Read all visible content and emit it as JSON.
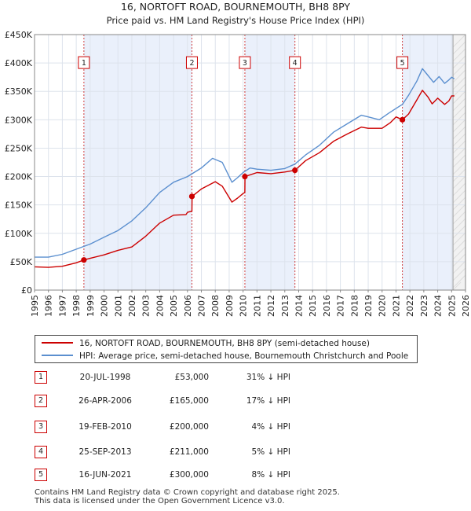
{
  "chart_data": {
    "type": "line",
    "title": "16, NORTOFT ROAD, BOURNEMOUTH, BH8 8PY",
    "subtitle": "Price paid vs. HM Land Registry's House Price Index (HPI)",
    "xlim": [
      1995,
      2026
    ],
    "ylim": [
      0,
      450000
    ],
    "y_ticks": [
      {
        "value": 0,
        "label": "£0"
      },
      {
        "value": 50000,
        "label": "£50K"
      },
      {
        "value": 100000,
        "label": "£100K"
      },
      {
        "value": 150000,
        "label": "£150K"
      },
      {
        "value": 200000,
        "label": "£200K"
      },
      {
        "value": 250000,
        "label": "£250K"
      },
      {
        "value": 300000,
        "label": "£300K"
      },
      {
        "value": 350000,
        "label": "£350K"
      },
      {
        "value": 400000,
        "label": "£400K"
      },
      {
        "value": 450000,
        "label": "£450K"
      }
    ],
    "x_ticks": [
      "1995",
      "1996",
      "1997",
      "1998",
      "1999",
      "2000",
      "2001",
      "2002",
      "2003",
      "2004",
      "2005",
      "2006",
      "2007",
      "2008",
      "2009",
      "2010",
      "2011",
      "2012",
      "2013",
      "2014",
      "2015",
      "2016",
      "2017",
      "2018",
      "2019",
      "2020",
      "2021",
      "2022",
      "2023",
      "2024",
      "2025",
      "2026"
    ],
    "grid": true,
    "forecast_from": 2025.1,
    "series": [
      {
        "name": "16, NORTOFT ROAD, BOURNEMOUTH, BH8 8PY (semi-detached house)",
        "color": "#cc0000",
        "points": [
          [
            1995.0,
            41000
          ],
          [
            1996.0,
            40000
          ],
          [
            1997.0,
            42000
          ],
          [
            1998.0,
            48000
          ],
          [
            1998.55,
            53000
          ],
          [
            1999.0,
            56000
          ],
          [
            2000.0,
            62000
          ],
          [
            2001.0,
            70000
          ],
          [
            2002.0,
            76000
          ],
          [
            2003.0,
            95000
          ],
          [
            2004.0,
            118000
          ],
          [
            2005.0,
            132000
          ],
          [
            2005.9,
            133000
          ],
          [
            2006.0,
            137000
          ],
          [
            2006.32,
            139000
          ],
          [
            2006.33,
            165000
          ],
          [
            2007.0,
            178000
          ],
          [
            2008.0,
            191000
          ],
          [
            2008.5,
            183000
          ],
          [
            2009.2,
            155000
          ],
          [
            2009.6,
            162000
          ],
          [
            2010.0,
            170000
          ],
          [
            2010.13,
            172000
          ],
          [
            2010.14,
            200000
          ],
          [
            2011.0,
            207000
          ],
          [
            2012.0,
            205000
          ],
          [
            2013.0,
            208000
          ],
          [
            2013.73,
            211000
          ],
          [
            2014.5,
            228000
          ],
          [
            2015.5,
            242000
          ],
          [
            2016.5,
            262000
          ],
          [
            2017.5,
            275000
          ],
          [
            2018.5,
            287000
          ],
          [
            2019.0,
            285000
          ],
          [
            2020.0,
            285000
          ],
          [
            2020.6,
            295000
          ],
          [
            2021.0,
            305000
          ],
          [
            2021.46,
            300000
          ],
          [
            2021.9,
            310000
          ],
          [
            2022.5,
            335000
          ],
          [
            2022.9,
            352000
          ],
          [
            2023.3,
            340000
          ],
          [
            2023.6,
            328000
          ],
          [
            2024.0,
            338000
          ],
          [
            2024.5,
            327000
          ],
          [
            2024.8,
            333000
          ],
          [
            2025.0,
            342000
          ],
          [
            2025.2,
            342000
          ]
        ]
      },
      {
        "name": "HPI: Average price, semi-detached house, Bournemouth Christchurch and Poole",
        "color": "#5b8fcf",
        "points": [
          [
            1995.0,
            58000
          ],
          [
            1996.0,
            58000
          ],
          [
            1997.0,
            63000
          ],
          [
            1998.0,
            72000
          ],
          [
            1998.55,
            77000
          ],
          [
            1999.0,
            81000
          ],
          [
            2000.0,
            93000
          ],
          [
            2001.0,
            105000
          ],
          [
            2002.0,
            122000
          ],
          [
            2003.0,
            145000
          ],
          [
            2004.0,
            172000
          ],
          [
            2005.0,
            190000
          ],
          [
            2006.0,
            200000
          ],
          [
            2007.0,
            215000
          ],
          [
            2007.8,
            232000
          ],
          [
            2008.5,
            225000
          ],
          [
            2009.2,
            190000
          ],
          [
            2009.6,
            198000
          ],
          [
            2010.0,
            207000
          ],
          [
            2010.5,
            215000
          ],
          [
            2011.0,
            213000
          ],
          [
            2012.0,
            211000
          ],
          [
            2013.0,
            214000
          ],
          [
            2013.73,
            222000
          ],
          [
            2014.5,
            238000
          ],
          [
            2015.5,
            255000
          ],
          [
            2016.5,
            278000
          ],
          [
            2017.5,
            293000
          ],
          [
            2018.5,
            308000
          ],
          [
            2019.0,
            305000
          ],
          [
            2019.8,
            300000
          ],
          [
            2020.5,
            312000
          ],
          [
            2021.0,
            320000
          ],
          [
            2021.46,
            327000
          ],
          [
            2021.9,
            343000
          ],
          [
            2022.5,
            368000
          ],
          [
            2022.9,
            390000
          ],
          [
            2023.3,
            378000
          ],
          [
            2023.7,
            366000
          ],
          [
            2024.1,
            376000
          ],
          [
            2024.5,
            364000
          ],
          [
            2024.8,
            370000
          ],
          [
            2025.0,
            375000
          ],
          [
            2025.2,
            372000
          ]
        ]
      }
    ],
    "sales": [
      {
        "label": "1",
        "x": 1998.55,
        "y": 53000
      },
      {
        "label": "2",
        "x": 2006.32,
        "y": 165000
      },
      {
        "label": "3",
        "x": 2010.13,
        "y": 200000
      },
      {
        "label": "4",
        "x": 2013.73,
        "y": 211000
      },
      {
        "label": "5",
        "x": 2021.46,
        "y": 300000
      }
    ],
    "marker_label_y": 400000
  },
  "legend": {
    "property_label": "16, NORTOFT ROAD, BOURNEMOUTH, BH8 8PY (semi-detached house)",
    "hpi_label": "HPI: Average price, semi-detached house, Bournemouth Christchurch and Poole"
  },
  "transactions": [
    {
      "num": "1",
      "date": "20-JUL-1998",
      "price": "£53,000",
      "hpi": "31% ↓ HPI"
    },
    {
      "num": "2",
      "date": "26-APR-2006",
      "price": "£165,000",
      "hpi": "17% ↓ HPI"
    },
    {
      "num": "3",
      "date": "19-FEB-2010",
      "price": "£200,000",
      "hpi": "4% ↓ HPI"
    },
    {
      "num": "4",
      "date": "25-SEP-2013",
      "price": "£211,000",
      "hpi": "5% ↓ HPI"
    },
    {
      "num": "5",
      "date": "16-JUN-2021",
      "price": "£300,000",
      "hpi": "8% ↓ HPI"
    }
  ],
  "footer": {
    "line1": "Contains HM Land Registry data © Crown copyright and database right 2025.",
    "line2": "This data is licensed under the Open Government Licence v3.0."
  }
}
